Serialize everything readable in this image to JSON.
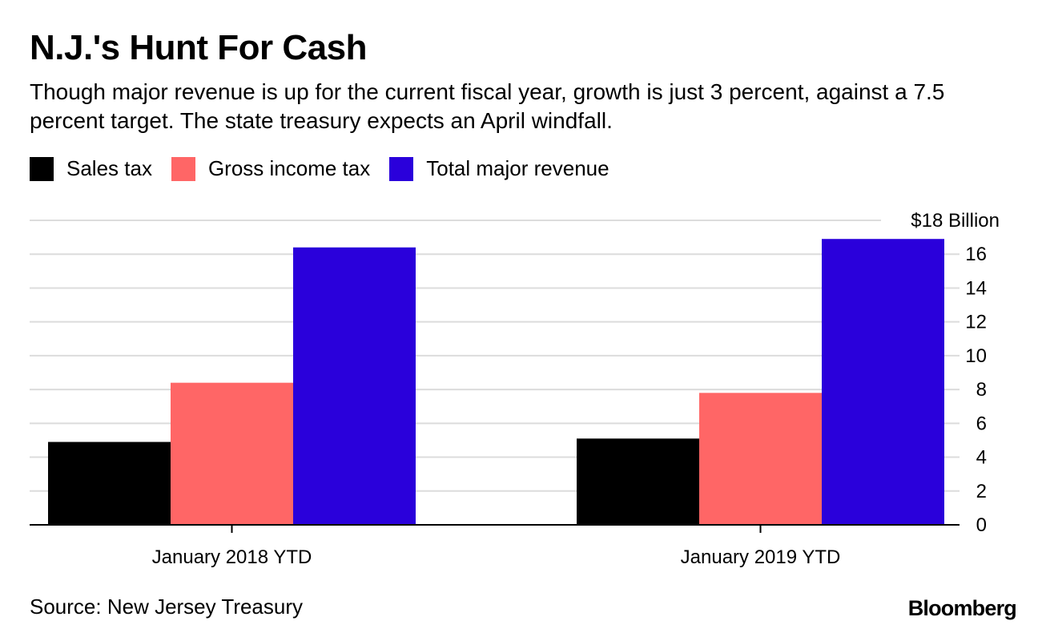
{
  "title": "N.J.'s Hunt For Cash",
  "subtitle": "Though major revenue is up for the current fiscal year, growth is just 3 percent, against a 7.5 percent target. The state treasury expects an April windfall.",
  "source": "Source: New Jersey Treasury",
  "brand": "Bloomberg",
  "chart_data": {
    "type": "bar",
    "categories": [
      "January 2018 YTD",
      "January 2019 YTD"
    ],
    "series": [
      {
        "name": "Sales tax",
        "color": "#000000",
        "values": [
          4.9,
          5.1
        ]
      },
      {
        "name": "Gross income tax",
        "color": "#ff6666",
        "values": [
          8.4,
          7.8
        ]
      },
      {
        "name": "Total major revenue",
        "color": "#2a00db",
        "values": [
          16.4,
          16.9
        ]
      }
    ],
    "ylim": [
      0,
      18
    ],
    "yticks": [
      0,
      2,
      4,
      6,
      8,
      10,
      12,
      14,
      16,
      18
    ],
    "ytick_labels": [
      "0",
      "2",
      "4",
      "6",
      "8",
      "10",
      "12",
      "14",
      "16",
      "$18 Billion"
    ],
    "grid": true,
    "legend_position": "top-left",
    "y_axis_side": "right"
  }
}
